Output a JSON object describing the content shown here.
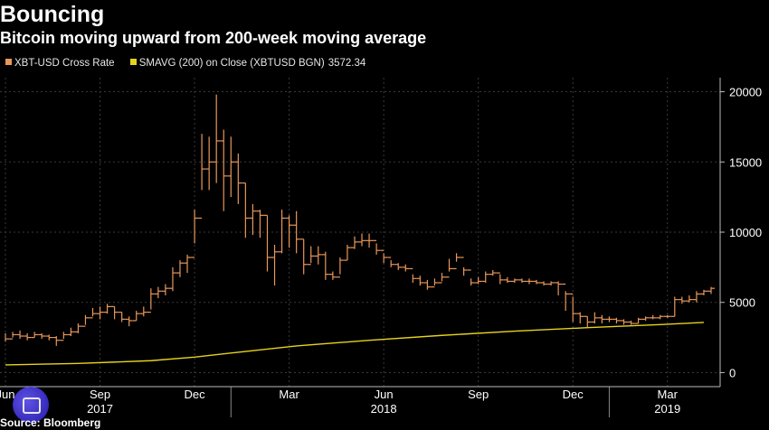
{
  "header": {
    "title": "Bouncing",
    "subtitle": "Bitcoin moving upward from 200-week moving average"
  },
  "legend": {
    "series1_label": "XBT-USD Cross Rate",
    "series2_label": "SMAVG (200)  on Close (XBTUSD BGN)",
    "series2_value": "3572.34"
  },
  "source": "Source: Bloomberg",
  "colors": {
    "background": "#000000",
    "price": "#e8975a",
    "sma": "#e6d21e",
    "grid": "#3a3a3a",
    "axis_text": "#ffffff"
  },
  "chart_data": {
    "type": "line",
    "x_unit": "weeks",
    "y_ticks": [
      0,
      5000,
      10000,
      15000,
      20000
    ],
    "ylim": [
      -1000,
      21000
    ],
    "x_month_ticks": [
      {
        "label": "Jun",
        "week": 0
      },
      {
        "label": "Sep",
        "week": 13
      },
      {
        "label": "Dec",
        "week": 26
      },
      {
        "label": "Mar",
        "week": 39
      },
      {
        "label": "Jun",
        "week": 52
      },
      {
        "label": "Sep",
        "week": 65
      },
      {
        "label": "Dec",
        "week": 78
      },
      {
        "label": "Mar",
        "week": 91
      }
    ],
    "x_year_labels": [
      {
        "label": "2017",
        "week": 13
      },
      {
        "label": "2018",
        "week": 52
      },
      {
        "label": "2019",
        "week": 91
      }
    ],
    "series": [
      {
        "name": "XBT-USD Cross Rate",
        "color": "#e8975a",
        "style": "ohlc",
        "bars": [
          [
            2400,
            2800,
            2200
          ],
          [
            2700,
            2900,
            2500
          ],
          [
            2600,
            3000,
            2400
          ],
          [
            2500,
            2800,
            2300
          ],
          [
            2700,
            2900,
            2500
          ],
          [
            2600,
            2800,
            2400
          ],
          [
            2500,
            2700,
            2300
          ],
          [
            2300,
            2600,
            1900
          ],
          [
            2700,
            2900,
            2400
          ],
          [
            2900,
            3200,
            2600
          ],
          [
            3300,
            3500,
            2800
          ],
          [
            3900,
            4100,
            3400
          ],
          [
            4200,
            4600,
            4000
          ],
          [
            4300,
            4700,
            3800
          ],
          [
            4700,
            4900,
            4200
          ],
          [
            4300,
            4700,
            3800
          ],
          [
            3800,
            4300,
            3600
          ],
          [
            3700,
            4000,
            3300
          ],
          [
            4200,
            4400,
            3700
          ],
          [
            4300,
            4700,
            4000
          ],
          [
            5600,
            6000,
            4500
          ],
          [
            5800,
            6100,
            5300
          ],
          [
            6000,
            6300,
            5500
          ],
          [
            7100,
            7500,
            5800
          ],
          [
            7800,
            8000,
            6800
          ],
          [
            8200,
            8400,
            7100
          ],
          [
            11000,
            11600,
            9200
          ],
          [
            14500,
            17000,
            13000
          ],
          [
            15000,
            16800,
            13000
          ],
          [
            16500,
            19800,
            13500
          ],
          [
            14000,
            17300,
            11500
          ],
          [
            15000,
            16800,
            12500
          ],
          [
            13500,
            15600,
            12000
          ],
          [
            11000,
            13500,
            9600
          ],
          [
            11500,
            12000,
            9800
          ],
          [
            11200,
            11600,
            9600
          ],
          [
            8200,
            11200,
            7200
          ],
          [
            8600,
            9100,
            6200
          ],
          [
            11000,
            11600,
            8500
          ],
          [
            10500,
            11200,
            8900
          ],
          [
            9500,
            11500,
            8500
          ],
          [
            7700,
            9500,
            7000
          ],
          [
            8300,
            9000,
            7800
          ],
          [
            8400,
            9000,
            7700
          ],
          [
            7000,
            8600,
            6600
          ],
          [
            6800,
            7200,
            6600
          ],
          [
            8000,
            8200,
            7000
          ],
          [
            8900,
            9100,
            8000
          ],
          [
            9300,
            9700,
            8800
          ],
          [
            9400,
            9900,
            9000
          ],
          [
            9400,
            9900,
            8900
          ],
          [
            8700,
            9200,
            8400
          ],
          [
            8200,
            8500,
            7800
          ],
          [
            7700,
            8000,
            7500
          ],
          [
            7500,
            7800,
            7300
          ],
          [
            7400,
            7700,
            7200
          ],
          [
            6700,
            7000,
            6400
          ],
          [
            6400,
            6900,
            6200
          ],
          [
            6100,
            6600,
            5900
          ],
          [
            6400,
            6700,
            6200
          ],
          [
            6800,
            7100,
            6500
          ],
          [
            7400,
            8100,
            7200
          ],
          [
            8200,
            8500,
            7900
          ],
          [
            7300,
            7500,
            6900
          ],
          [
            6400,
            6700,
            6200
          ],
          [
            6500,
            6800,
            6300
          ],
          [
            7000,
            7200,
            6400
          ],
          [
            7100,
            7300,
            6900
          ],
          [
            6600,
            7000,
            6300
          ],
          [
            6500,
            6800,
            6400
          ],
          [
            6600,
            6700,
            6400
          ],
          [
            6500,
            6700,
            6400
          ],
          [
            6500,
            6700,
            6300
          ],
          [
            6400,
            6600,
            6300
          ],
          [
            6300,
            6500,
            6200
          ],
          [
            6400,
            6500,
            6200
          ],
          [
            6300,
            6500,
            5500
          ],
          [
            5600,
            5800,
            4400
          ],
          [
            4200,
            5400,
            3600
          ],
          [
            4000,
            4300,
            3500
          ],
          [
            3600,
            4000,
            3200
          ],
          [
            3900,
            4300,
            3500
          ],
          [
            3800,
            4100,
            3500
          ],
          [
            3800,
            4000,
            3600
          ],
          [
            3700,
            3900,
            3500
          ],
          [
            3600,
            3800,
            3400
          ],
          [
            3500,
            3700,
            3400
          ],
          [
            3800,
            3900,
            3500
          ],
          [
            3900,
            4000,
            3700
          ],
          [
            3900,
            4100,
            3800
          ],
          [
            4000,
            4100,
            3800
          ],
          [
            4000,
            4100,
            3900
          ],
          [
            5200,
            5400,
            4000
          ],
          [
            5100,
            5400,
            4900
          ],
          [
            5200,
            5500,
            5000
          ],
          [
            5600,
            5800,
            5000
          ],
          [
            5800,
            5900,
            5500
          ],
          [
            6000,
            6100,
            5600
          ]
        ]
      },
      {
        "name": "SMAVG (200)  on Close (XBTUSD BGN)",
        "color": "#e6d21e",
        "style": "line",
        "points": [
          [
            0,
            550
          ],
          [
            10,
            650
          ],
          [
            20,
            850
          ],
          [
            26,
            1100
          ],
          [
            32,
            1450
          ],
          [
            40,
            1900
          ],
          [
            50,
            2300
          ],
          [
            60,
            2650
          ],
          [
            70,
            2950
          ],
          [
            80,
            3200
          ],
          [
            90,
            3420
          ],
          [
            96,
            3572
          ]
        ]
      }
    ]
  }
}
